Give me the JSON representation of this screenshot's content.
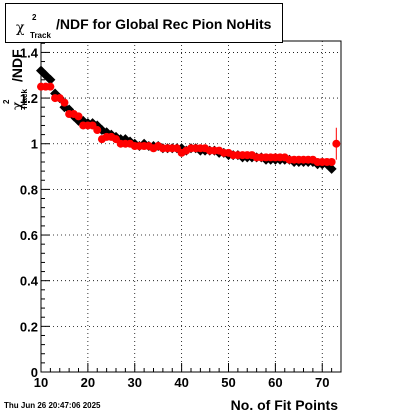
{
  "title": {
    "chi_symbol": "χ",
    "sup": "2",
    "sub": "Track",
    "text": "/NDF for Global Rec Pion NoHits"
  },
  "ylabel": {
    "chi_symbol": "χ",
    "sup": "2",
    "sub": "Track",
    "ndf": "/NDF"
  },
  "xlabel": "No. of Fit Points",
  "timestamp": "Thu Jun 26 20:47:06 2025",
  "colors": {
    "series_black": "#000000",
    "series_red": "#ff0000",
    "grid": "#000000"
  },
  "chart_data": {
    "type": "scatter",
    "xlim": [
      10,
      74
    ],
    "ylim": [
      0,
      1.45
    ],
    "grid": true,
    "x_ticks": [
      "10",
      "20",
      "30",
      "40",
      "50",
      "60",
      "70"
    ],
    "y_ticks": [
      "0",
      "0.2",
      "0.4",
      "0.6",
      "0.8",
      "1",
      "1.2",
      "1.4"
    ],
    "series": [
      {
        "x": [
          10,
          11,
          12,
          13,
          14,
          15,
          16,
          17,
          18,
          19,
          20,
          21,
          22,
          23,
          24,
          25,
          26,
          27,
          28,
          29,
          30,
          31,
          32,
          33,
          34,
          35,
          36,
          37,
          38,
          39,
          40,
          41,
          42,
          43,
          44,
          45,
          46,
          47,
          48,
          49,
          50,
          51,
          52,
          53,
          54,
          55,
          56,
          57,
          58,
          59,
          60,
          61,
          62,
          63,
          64,
          65,
          66,
          67,
          68,
          69,
          70,
          71,
          72
        ],
        "y": [
          1.32,
          1.3,
          1.28,
          1.22,
          1.2,
          1.16,
          1.15,
          1.12,
          1.1,
          1.1,
          1.09,
          1.09,
          1.08,
          1.06,
          1.05,
          1.04,
          1.03,
          1.02,
          1.02,
          1.01,
          1.0,
          0.99,
          1.0,
          0.99,
          0.99,
          0.99,
          0.98,
          0.98,
          0.98,
          0.98,
          0.98,
          0.97,
          0.98,
          0.98,
          0.97,
          0.97,
          0.97,
          0.97,
          0.96,
          0.96,
          0.95,
          0.95,
          0.95,
          0.94,
          0.94,
          0.94,
          0.94,
          0.94,
          0.93,
          0.93,
          0.93,
          0.93,
          0.93,
          0.93,
          0.92,
          0.92,
          0.92,
          0.92,
          0.92,
          0.91,
          0.91,
          0.91,
          0.89
        ]
      },
      {
        "x": [
          10,
          11,
          12,
          13,
          14,
          15,
          16,
          17,
          18,
          19,
          20,
          21,
          22,
          23,
          24,
          25,
          26,
          27,
          28,
          29,
          30,
          31,
          32,
          33,
          34,
          35,
          36,
          37,
          38,
          39,
          40,
          41,
          42,
          43,
          44,
          45,
          46,
          47,
          48,
          49,
          50,
          51,
          52,
          53,
          54,
          55,
          56,
          57,
          58,
          59,
          60,
          61,
          62,
          63,
          64,
          65,
          66,
          67,
          68,
          69,
          70,
          71,
          72,
          73
        ],
        "y": [
          1.25,
          1.25,
          1.25,
          1.2,
          1.2,
          1.18,
          1.13,
          1.13,
          1.12,
          1.08,
          1.08,
          1.08,
          1.06,
          1.02,
          1.03,
          1.03,
          1.02,
          1.0,
          1.0,
          1.0,
          0.99,
          0.99,
          0.99,
          0.99,
          0.98,
          0.99,
          0.98,
          0.98,
          0.98,
          0.98,
          0.96,
          0.97,
          0.98,
          0.98,
          0.98,
          0.98,
          0.97,
          0.97,
          0.97,
          0.96,
          0.96,
          0.95,
          0.95,
          0.95,
          0.95,
          0.95,
          0.94,
          0.94,
          0.94,
          0.94,
          0.94,
          0.94,
          0.94,
          0.93,
          0.93,
          0.93,
          0.93,
          0.93,
          0.93,
          0.92,
          0.92,
          0.92,
          0.92,
          1.0
        ],
        "yerr_last": 0.07
      }
    ]
  }
}
